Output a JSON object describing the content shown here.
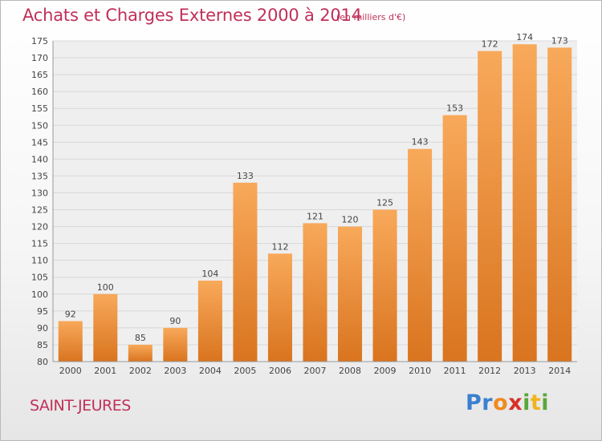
{
  "header": {
    "title": "Achats et Charges Externes 2000 à 2014",
    "unit": "(en milliers d'€)"
  },
  "footer": {
    "commune": "SAINT-JEURES",
    "logo": "Proxiti",
    "logo_letters": [
      {
        "ch": "P",
        "color": "#3a7fd0"
      },
      {
        "ch": "r",
        "color": "#3a7fd0"
      },
      {
        "ch": "o",
        "color": "#f08a1e"
      },
      {
        "ch": "x",
        "color": "#d8302a"
      },
      {
        "ch": "i",
        "color": "#5aa73a"
      },
      {
        "ch": "t",
        "color": "#f0b41e"
      },
      {
        "ch": "i",
        "color": "#5aa73a"
      }
    ]
  },
  "colors": {
    "accent": "#c0305a",
    "bar_light": "#f8a95a",
    "bar_dark": "#d9741f",
    "grid": "#d8d8d8"
  },
  "chart_data": {
    "type": "bar",
    "title": "Achats et Charges Externes 2000 à 2014",
    "subtitle": "(en milliers d'€)",
    "xlabel": "",
    "ylabel": "",
    "categories": [
      "2000",
      "2001",
      "2002",
      "2003",
      "2004",
      "2005",
      "2006",
      "2007",
      "2008",
      "2009",
      "2010",
      "2011",
      "2012",
      "2013",
      "2014"
    ],
    "values": [
      92,
      100,
      85,
      90,
      104,
      133,
      112,
      121,
      120,
      125,
      143,
      153,
      172,
      174,
      173
    ],
    "ylim": [
      80,
      175
    ],
    "yticks": [
      80,
      85,
      90,
      95,
      100,
      105,
      110,
      115,
      120,
      125,
      130,
      135,
      140,
      145,
      150,
      155,
      160,
      165,
      170,
      175
    ],
    "grid": true,
    "legend": "none"
  }
}
